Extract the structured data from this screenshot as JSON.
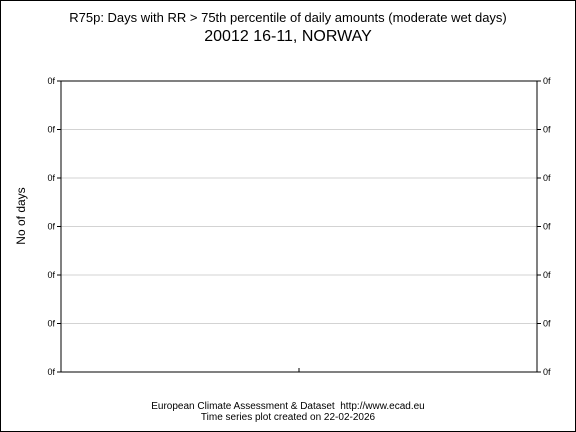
{
  "header": {
    "title": "R75p: Days with RR > 75th percentile of daily amounts (moderate wet days)",
    "subtitle": "20012 16-11, NORWAY"
  },
  "footer": {
    "source": "European Climate Assessment & Dataset  http://www.ecad.eu",
    "created": "Time series plot created on 22-02-2026"
  },
  "chart_data": {
    "type": "line",
    "title": "R75p: Days with RR > 75th percentile of daily amounts (moderate wet days)",
    "subtitle": "20012 16-11, NORWAY",
    "xlabel": "",
    "ylabel": "No of days",
    "y_tick_labels": [
      "0f",
      "0f",
      "0f",
      "0f",
      "0f",
      "0f",
      "0f"
    ],
    "x_tick_labels": [],
    "series": [],
    "grid": true,
    "legend": "none",
    "colors": {
      "axes": "#000000",
      "grid": "#d3d3d3",
      "background": "#ffffff"
    }
  }
}
